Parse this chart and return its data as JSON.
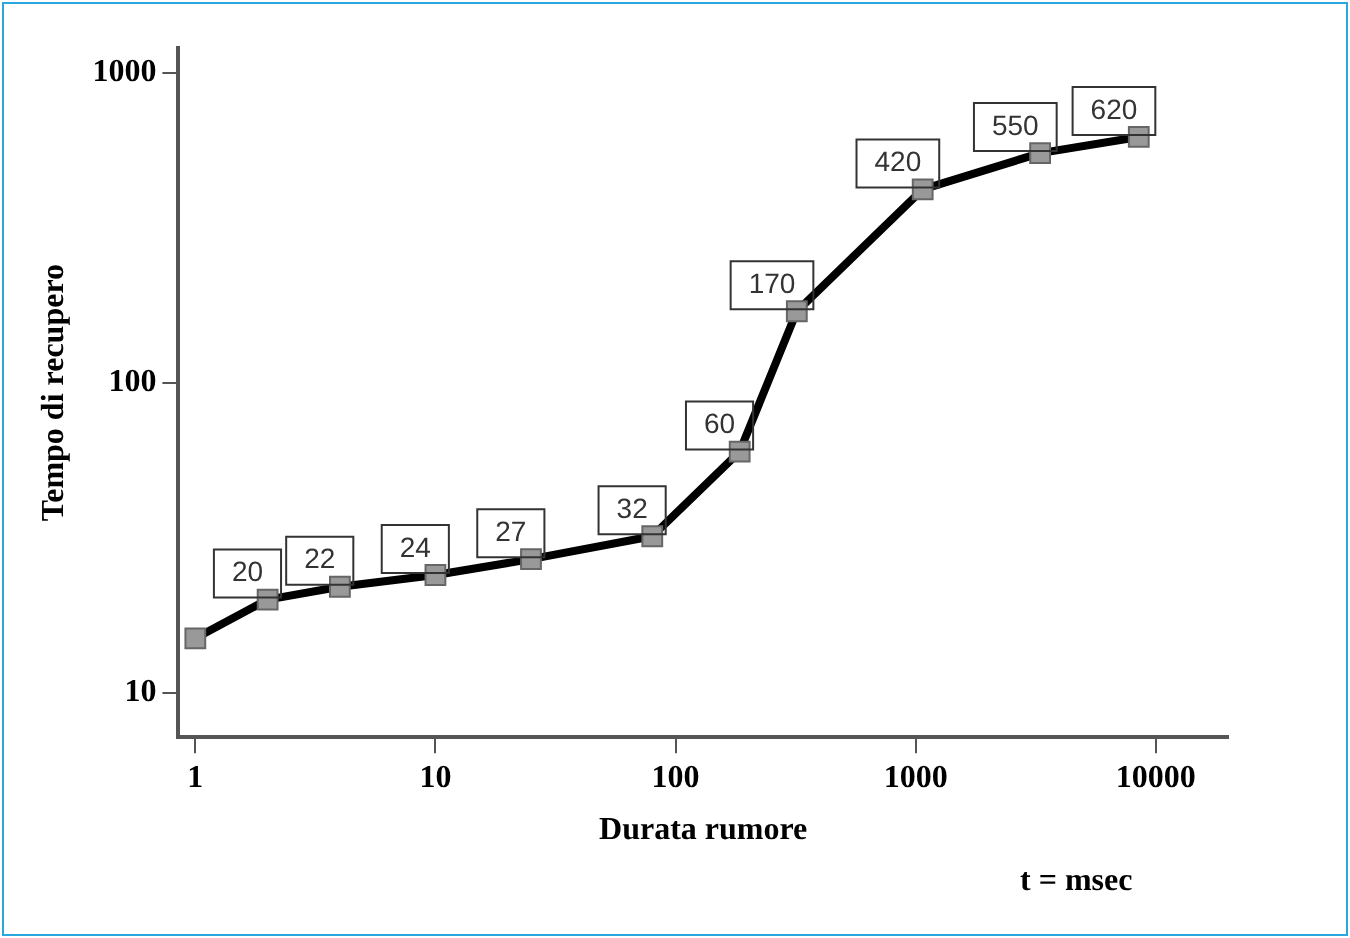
{
  "chart_data": {
    "type": "line",
    "xlabel": "Durata rumore",
    "ylabel": "Tempo di recupero",
    "annotations": [
      "t = msec"
    ],
    "x": [
      1,
      2,
      4,
      10,
      25,
      80,
      185,
      320,
      1070,
      3300,
      8500
    ],
    "series": [
      {
        "color": "#000000",
        "values": [
          15,
          20,
          22,
          24,
          27,
          32,
          60,
          170,
          420,
          550,
          620
        ],
        "value_labels": [
          null,
          "20",
          "22",
          "24",
          "27",
          "32",
          "60",
          "170",
          "420",
          "550",
          "620"
        ]
      }
    ],
    "log": "xy",
    "xlim": [
      0.85,
      20000
    ],
    "ylim": [
      7.2,
      1200
    ],
    "xticks": [
      1,
      10,
      100,
      1000,
      10000
    ],
    "yticks": [
      10,
      100,
      1000
    ],
    "grid": false,
    "legend": false,
    "marker": "square",
    "line_style": "solid"
  }
}
